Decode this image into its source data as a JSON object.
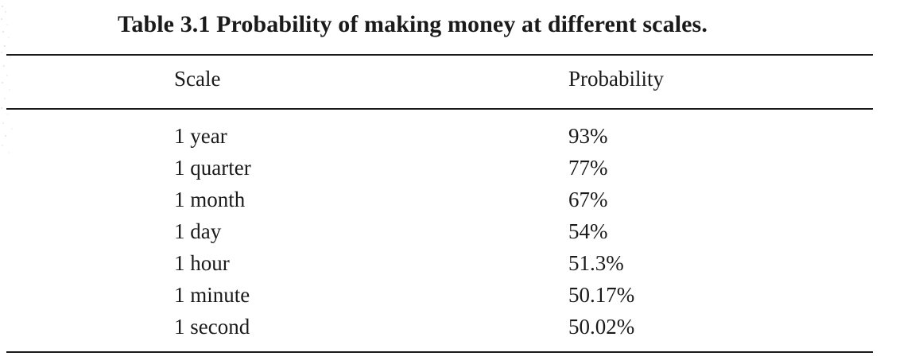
{
  "caption": "Table 3.1 Probability of making money at different scales.",
  "table": {
    "headers": [
      "Scale",
      "Probability"
    ],
    "rows": [
      [
        "1 year",
        "93%"
      ],
      [
        "1 quarter",
        "77%"
      ],
      [
        "1 month",
        "67%"
      ],
      [
        "1 day",
        "54%"
      ],
      [
        "1 hour",
        "51.3%"
      ],
      [
        "1 minute",
        "50.17%"
      ],
      [
        "1 second",
        "50.02%"
      ]
    ]
  }
}
